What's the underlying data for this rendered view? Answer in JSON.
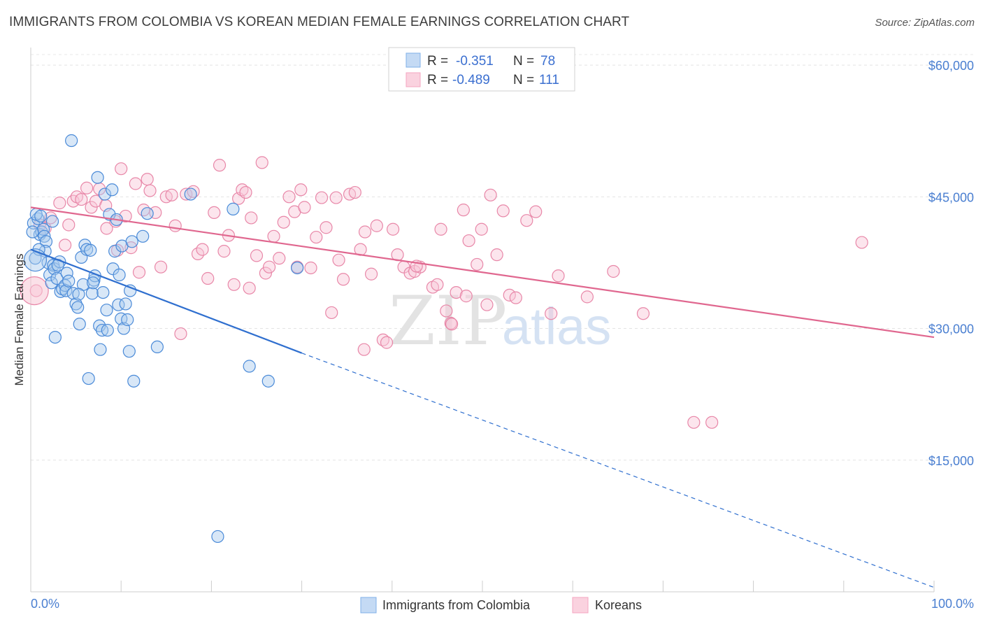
{
  "header": {
    "title": "IMMIGRANTS FROM COLOMBIA VS KOREAN MEDIAN FEMALE EARNINGS CORRELATION CHART",
    "source": "Source: ZipAtlas.com"
  },
  "watermark": {
    "zip": "ZIP",
    "atlas": "atlas"
  },
  "legend": {
    "rows": [
      {
        "r_label": "R =",
        "r_value": "-0.351",
        "n_label": "N =",
        "n_value": "78",
        "color": "#7fb0e8"
      },
      {
        "r_label": "R =",
        "r_value": "-0.489",
        "n_label": "N =",
        "n_value": "111",
        "color": "#f4a6c0"
      }
    ]
  },
  "bottom_legend": [
    {
      "label": "Immigrants from Colombia",
      "color": "#7fb0e8"
    },
    {
      "label": "Koreans",
      "color": "#f4a6c0"
    }
  ],
  "chart_data": {
    "type": "scatter",
    "title": "IMMIGRANTS FROM COLOMBIA VS KOREAN MEDIAN FEMALE EARNINGS CORRELATION CHART",
    "xlabel": "",
    "ylabel": "Median Female Earnings",
    "xlim": [
      0,
      100
    ],
    "ylim": [
      0,
      62000
    ],
    "x_tick_labels": [
      {
        "value": 0,
        "label": "0.0%"
      },
      {
        "value": 100,
        "label": "100.0%"
      }
    ],
    "y_ticks": [
      {
        "value": 15000,
        "label": "$15,000"
      },
      {
        "value": 30000,
        "label": "$30,000"
      },
      {
        "value": 45000,
        "label": "$45,000"
      },
      {
        "value": 60000,
        "label": "$60,000"
      }
    ],
    "grid": true,
    "series": [
      {
        "name": "Immigrants from Colombia",
        "color": "#4a8ad8",
        "fill": "#a9c9ee",
        "trend": {
          "x0": 0,
          "y0": 39000,
          "x1": 30,
          "y1": 27200,
          "dash_to_x": 100,
          "dash_to_y": 500,
          "color": "#2f6fcf"
        },
        "points": [
          [
            0.3,
            42000
          ],
          [
            0.5,
            38000
          ],
          [
            0.8,
            42500
          ],
          [
            1.0,
            40700
          ],
          [
            1.2,
            41000
          ],
          [
            1.4,
            41300
          ],
          [
            1.5,
            40500
          ],
          [
            1.7,
            39900
          ],
          [
            1.6,
            38800
          ],
          [
            1.9,
            37500
          ],
          [
            2.1,
            36100
          ],
          [
            2.3,
            35200
          ],
          [
            2.4,
            42200
          ],
          [
            2.5,
            37200
          ],
          [
            2.6,
            36800
          ],
          [
            2.7,
            29000
          ],
          [
            2.9,
            35700
          ],
          [
            3.2,
            37600
          ],
          [
            3.3,
            34200
          ],
          [
            3.5,
            34500
          ],
          [
            3.8,
            34900
          ],
          [
            3.9,
            34300
          ],
          [
            4.0,
            36300
          ],
          [
            4.2,
            35400
          ],
          [
            4.5,
            51400
          ],
          [
            4.7,
            34000
          ],
          [
            5.0,
            32800
          ],
          [
            5.2,
            32400
          ],
          [
            5.4,
            30500
          ],
          [
            5.6,
            38100
          ],
          [
            5.8,
            35000
          ],
          [
            6.0,
            39500
          ],
          [
            6.2,
            39000
          ],
          [
            6.4,
            24300
          ],
          [
            6.6,
            38900
          ],
          [
            6.8,
            34000
          ],
          [
            7.0,
            35500
          ],
          [
            7.1,
            36000
          ],
          [
            7.4,
            47200
          ],
          [
            7.6,
            30300
          ],
          [
            7.7,
            27600
          ],
          [
            7.9,
            29800
          ],
          [
            8.2,
            45300
          ],
          [
            8.4,
            32100
          ],
          [
            8.5,
            29800
          ],
          [
            8.7,
            43000
          ],
          [
            9.0,
            45800
          ],
          [
            9.1,
            36800
          ],
          [
            9.3,
            38800
          ],
          [
            9.5,
            42400
          ],
          [
            9.7,
            32700
          ],
          [
            10.0,
            31100
          ],
          [
            10.1,
            39400
          ],
          [
            10.3,
            30000
          ],
          [
            10.5,
            32800
          ],
          [
            10.7,
            31000
          ],
          [
            10.9,
            27400
          ],
          [
            11.0,
            34300
          ],
          [
            11.2,
            39900
          ],
          [
            11.4,
            24000
          ],
          [
            12.4,
            40500
          ],
          [
            12.9,
            43100
          ],
          [
            14.0,
            27900
          ],
          [
            17.7,
            45300
          ],
          [
            20.7,
            6300
          ],
          [
            22.4,
            43600
          ],
          [
            24.2,
            25700
          ],
          [
            26.3,
            24000
          ],
          [
            29.5,
            36900
          ],
          [
            0.2,
            41000
          ],
          [
            0.6,
            43000
          ],
          [
            1.1,
            42800
          ],
          [
            0.9,
            39000
          ],
          [
            3.0,
            37200
          ],
          [
            5.3,
            33900
          ],
          [
            6.9,
            35200
          ],
          [
            8.0,
            34100
          ],
          [
            9.8,
            36100
          ]
        ]
      },
      {
        "name": "Koreans",
        "color": "#e887a8",
        "fill": "#f8c6d6",
        "trend": {
          "x0": 0,
          "y0": 43800,
          "x1": 100,
          "y1": 29000,
          "color": "#e0678f"
        },
        "points": [
          [
            0.6,
            34300
          ],
          [
            1.0,
            41800
          ],
          [
            1.6,
            41400
          ],
          [
            2.2,
            42600
          ],
          [
            3.2,
            44300
          ],
          [
            3.8,
            39500
          ],
          [
            4.2,
            41800
          ],
          [
            4.7,
            44500
          ],
          [
            5.1,
            45000
          ],
          [
            5.6,
            44700
          ],
          [
            6.2,
            46000
          ],
          [
            6.7,
            43800
          ],
          [
            7.2,
            44500
          ],
          [
            7.6,
            45900
          ],
          [
            8.3,
            44000
          ],
          [
            8.4,
            41400
          ],
          [
            9.4,
            42200
          ],
          [
            9.6,
            38900
          ],
          [
            10.0,
            48200
          ],
          [
            10.5,
            42800
          ],
          [
            11.1,
            39200
          ],
          [
            11.6,
            46500
          ],
          [
            12.0,
            36400
          ],
          [
            12.5,
            43500
          ],
          [
            12.9,
            47000
          ],
          [
            13.2,
            45700
          ],
          [
            13.8,
            43200
          ],
          [
            14.4,
            37000
          ],
          [
            15.0,
            45000
          ],
          [
            15.6,
            45200
          ],
          [
            16.0,
            41700
          ],
          [
            16.6,
            29400
          ],
          [
            17.2,
            45300
          ],
          [
            18.0,
            45600
          ],
          [
            18.5,
            38500
          ],
          [
            19.0,
            39000
          ],
          [
            19.6,
            35700
          ],
          [
            20.3,
            43200
          ],
          [
            20.9,
            48600
          ],
          [
            21.4,
            38800
          ],
          [
            21.9,
            40600
          ],
          [
            22.5,
            35000
          ],
          [
            23.0,
            44800
          ],
          [
            23.4,
            45800
          ],
          [
            24.2,
            34600
          ],
          [
            24.4,
            42600
          ],
          [
            25.0,
            38300
          ],
          [
            25.6,
            48900
          ],
          [
            26.0,
            36300
          ],
          [
            26.4,
            37000
          ],
          [
            26.9,
            40500
          ],
          [
            27.5,
            38000
          ],
          [
            28.0,
            42100
          ],
          [
            28.6,
            45000
          ],
          [
            29.2,
            43300
          ],
          [
            29.9,
            45800
          ],
          [
            30.3,
            43800
          ],
          [
            31.0,
            36900
          ],
          [
            31.6,
            40400
          ],
          [
            32.2,
            44900
          ],
          [
            32.7,
            41500
          ],
          [
            33.3,
            31800
          ],
          [
            34.1,
            37800
          ],
          [
            34.6,
            35600
          ],
          [
            35.3,
            45300
          ],
          [
            35.9,
            45500
          ],
          [
            36.5,
            39000
          ],
          [
            37.0,
            41000
          ],
          [
            37.7,
            36200
          ],
          [
            38.3,
            41700
          ],
          [
            39.0,
            28700
          ],
          [
            39.4,
            28400
          ],
          [
            40.1,
            41300
          ],
          [
            40.6,
            38400
          ],
          [
            41.3,
            37000
          ],
          [
            42.0,
            36300
          ],
          [
            42.5,
            36500
          ],
          [
            43.1,
            37000
          ],
          [
            44.5,
            34700
          ],
          [
            45.0,
            35000
          ],
          [
            45.4,
            41300
          ],
          [
            46.0,
            32000
          ],
          [
            46.5,
            30600
          ],
          [
            47.1,
            34100
          ],
          [
            47.9,
            43500
          ],
          [
            48.5,
            40000
          ],
          [
            49.4,
            37300
          ],
          [
            49.9,
            41300
          ],
          [
            50.5,
            32700
          ],
          [
            50.9,
            45200
          ],
          [
            51.6,
            38400
          ],
          [
            52.3,
            43400
          ],
          [
            53.0,
            33800
          ],
          [
            53.7,
            33500
          ],
          [
            54.9,
            42300
          ],
          [
            55.9,
            43300
          ],
          [
            57.6,
            31700
          ],
          [
            58.4,
            36000
          ],
          [
            61.6,
            33600
          ],
          [
            64.5,
            36500
          ],
          [
            67.8,
            31700
          ],
          [
            73.4,
            19300
          ],
          [
            75.4,
            19300
          ],
          [
            92.0,
            39800
          ],
          [
            23.8,
            45500
          ],
          [
            29.5,
            37000
          ],
          [
            33.8,
            44900
          ],
          [
            42.7,
            37100
          ],
          [
            36.9,
            27600
          ],
          [
            46.6,
            30500
          ],
          [
            48.2,
            33700
          ]
        ]
      }
    ]
  }
}
